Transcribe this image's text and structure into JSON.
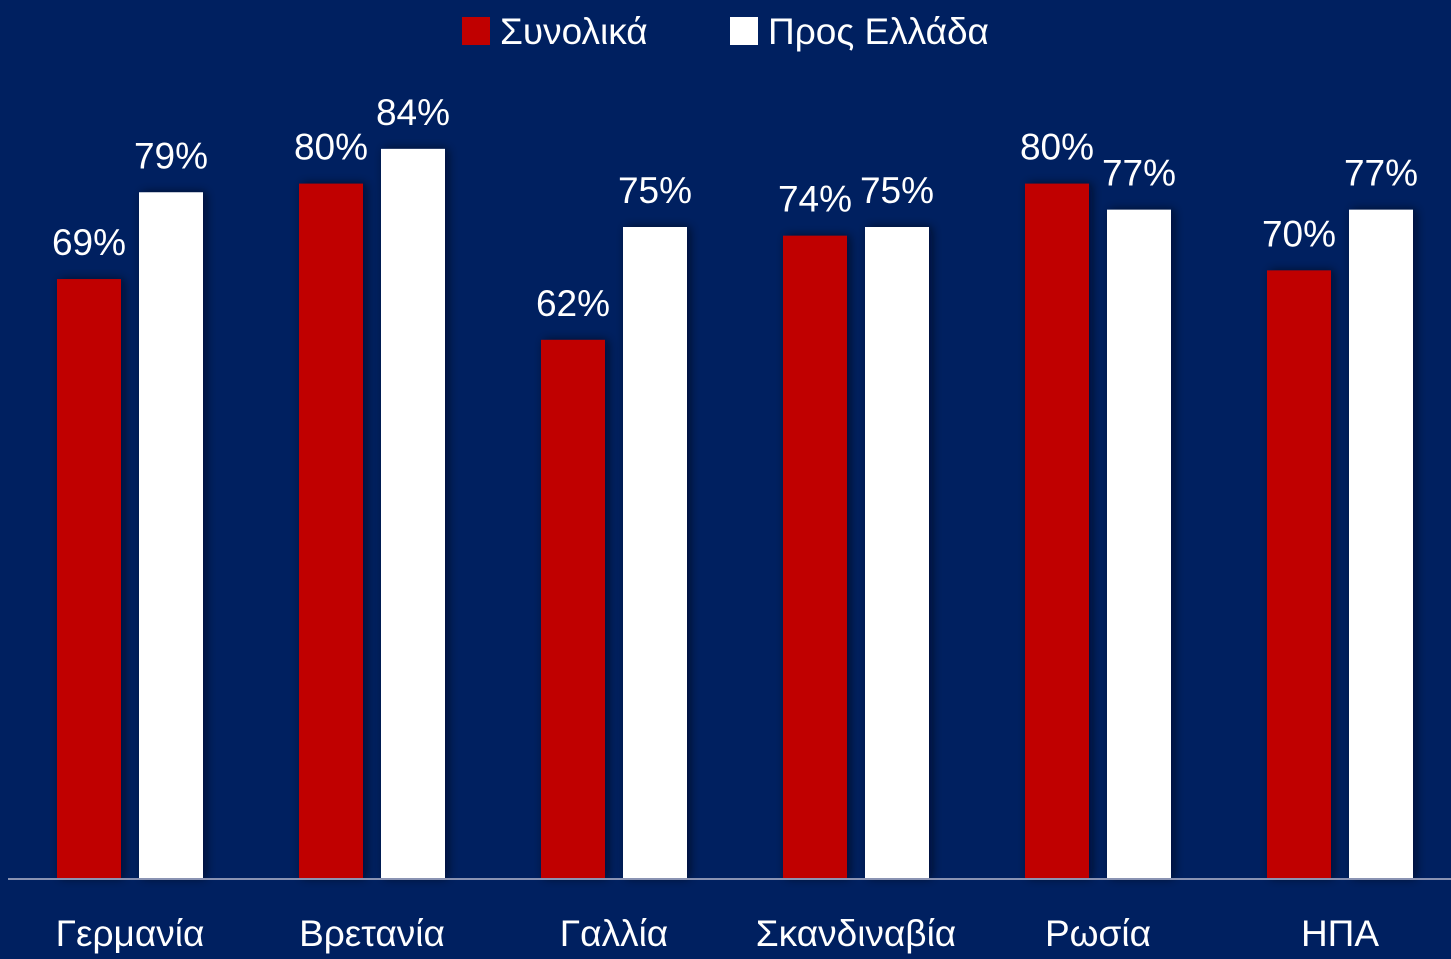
{
  "chart_data": {
    "type": "bar",
    "categories": [
      "Γερμανία",
      "Βρετανία",
      "Γαλλία",
      "Σκανδιναβία",
      "Ρωσία",
      "ΗΠΑ"
    ],
    "series": [
      {
        "name": "Συνολικά",
        "color": "#c00000",
        "values": [
          69,
          80,
          62,
          74,
          80,
          70
        ],
        "value_labels": [
          "69%",
          "80%",
          "62%",
          "74%",
          "80%",
          "70%"
        ]
      },
      {
        "name": "Προς Ελλάδα",
        "color": "#ffffff",
        "values": [
          79,
          84,
          75,
          75,
          77,
          77
        ],
        "value_labels": [
          "79%",
          "84%",
          "75%",
          "75%",
          "77%",
          "77%"
        ]
      }
    ],
    "legend": "top"
  }
}
